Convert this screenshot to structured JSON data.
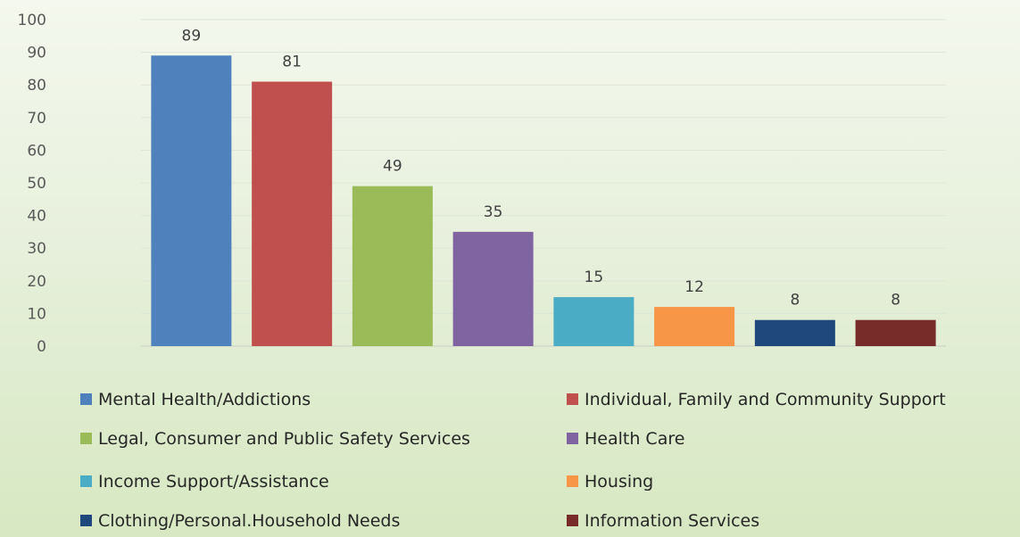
{
  "chart_data": {
    "type": "bar",
    "title": "",
    "xlabel": "",
    "ylabel": "",
    "ylim": [
      0,
      100
    ],
    "yticks": [
      0,
      10,
      20,
      30,
      40,
      50,
      60,
      70,
      80,
      90,
      100
    ],
    "grid": true,
    "legend_position": "bottom",
    "categories": [
      "Mental Health/Addictions",
      "Individual, Family and Community Support",
      "Legal, Consumer and Public Safety Services",
      "Health Care",
      "Income Support/Assistance",
      "Housing",
      "Clothing/Personal.Household Needs",
      "Information Services"
    ],
    "values": [
      89,
      81,
      49,
      35,
      15,
      12,
      8,
      8
    ],
    "colors": [
      "#4f81bd",
      "#c0504d",
      "#9bbb59",
      "#8064a2",
      "#4bacc6",
      "#f79646",
      "#1f497d",
      "#772c2a"
    ]
  }
}
